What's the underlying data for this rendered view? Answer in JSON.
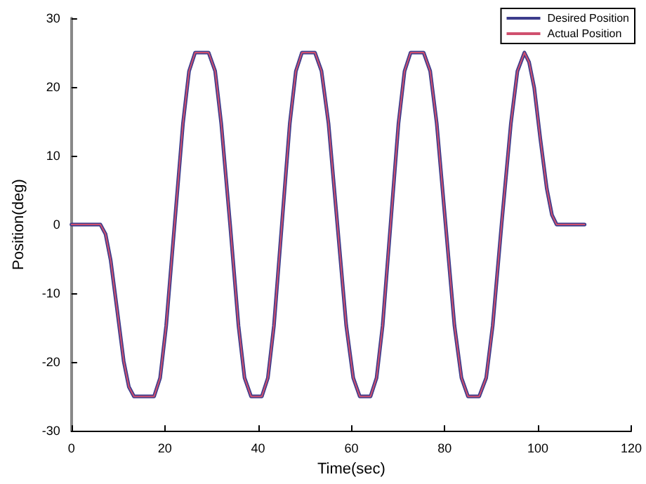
{
  "chart_data": {
    "type": "line",
    "xlabel": "Time(sec)",
    "ylabel": "Position(deg)",
    "x": [
      0,
      6.2,
      7.3,
      8.4,
      9.8,
      11.2,
      12.3,
      13.4,
      17.7,
      19.0,
      20.3,
      22.1,
      23.9,
      25.2,
      26.5,
      29.4,
      30.8,
      32.1,
      34.0,
      35.8,
      37.1,
      38.5,
      40.8,
      42.1,
      43.4,
      45.1,
      46.8,
      48.1,
      49.4,
      52.2,
      53.6,
      55.1,
      57.0,
      58.9,
      60.4,
      61.8,
      64.1,
      65.4,
      66.7,
      68.4,
      70.1,
      71.4,
      72.7,
      75.5,
      76.9,
      78.3,
      80.2,
      82.1,
      83.6,
      85.0,
      87.4,
      88.9,
      90.3,
      92.2,
      94.2,
      95.6,
      97.1,
      98.1,
      99.2,
      100.5,
      101.9,
      103.0,
      104.0,
      110.0
    ],
    "series": [
      {
        "name": "Desired Position",
        "color": "#3c3c8c",
        "values": [
          0,
          0,
          -1.4,
          -5.2,
          -12.5,
          -19.9,
          -23.6,
          -25,
          -25,
          -22.3,
          -14.7,
          0,
          14.7,
          22.3,
          25,
          25,
          22.3,
          14.7,
          0,
          -14.7,
          -22.3,
          -25,
          -25,
          -22.3,
          -14.7,
          0,
          14.7,
          22.3,
          25,
          25,
          22.3,
          14.7,
          0,
          -14.7,
          -22.3,
          -25,
          -25,
          -22.3,
          -14.7,
          0,
          14.7,
          22.3,
          25,
          25,
          22.3,
          14.7,
          0,
          -14.7,
          -22.3,
          -25,
          -25,
          -22.3,
          -14.7,
          0,
          14.7,
          22.3,
          25,
          23.6,
          19.9,
          12.5,
          5.2,
          1.4,
          0,
          0
        ]
      },
      {
        "name": "Actual Position",
        "color": "#d0506e",
        "values": [
          0,
          0,
          -1.4,
          -5.2,
          -12.5,
          -19.9,
          -23.6,
          -25,
          -25,
          -22.3,
          -14.7,
          0,
          14.7,
          22.3,
          25,
          25,
          22.3,
          14.7,
          0,
          -14.7,
          -22.3,
          -25,
          -25,
          -22.3,
          -14.7,
          0,
          14.7,
          22.3,
          25,
          25,
          22.3,
          14.7,
          0,
          -14.7,
          -22.3,
          -25,
          -25,
          -22.3,
          -14.7,
          0,
          14.7,
          22.3,
          25,
          25,
          22.3,
          14.7,
          0,
          -14.7,
          -22.3,
          -25,
          -25,
          -22.3,
          -14.7,
          0,
          14.7,
          22.3,
          25,
          23.6,
          19.9,
          12.5,
          5.2,
          1.4,
          0,
          0
        ]
      }
    ],
    "xlim": [
      0,
      120
    ],
    "xticks": [
      0,
      20,
      40,
      60,
      80,
      100,
      120
    ],
    "ylim": [
      -30,
      30
    ],
    "yticks": [
      -30,
      -20,
      -10,
      0,
      10,
      20,
      30
    ],
    "grid": false,
    "legend": "top right",
    "marker": "none",
    "line_style": "solid"
  }
}
